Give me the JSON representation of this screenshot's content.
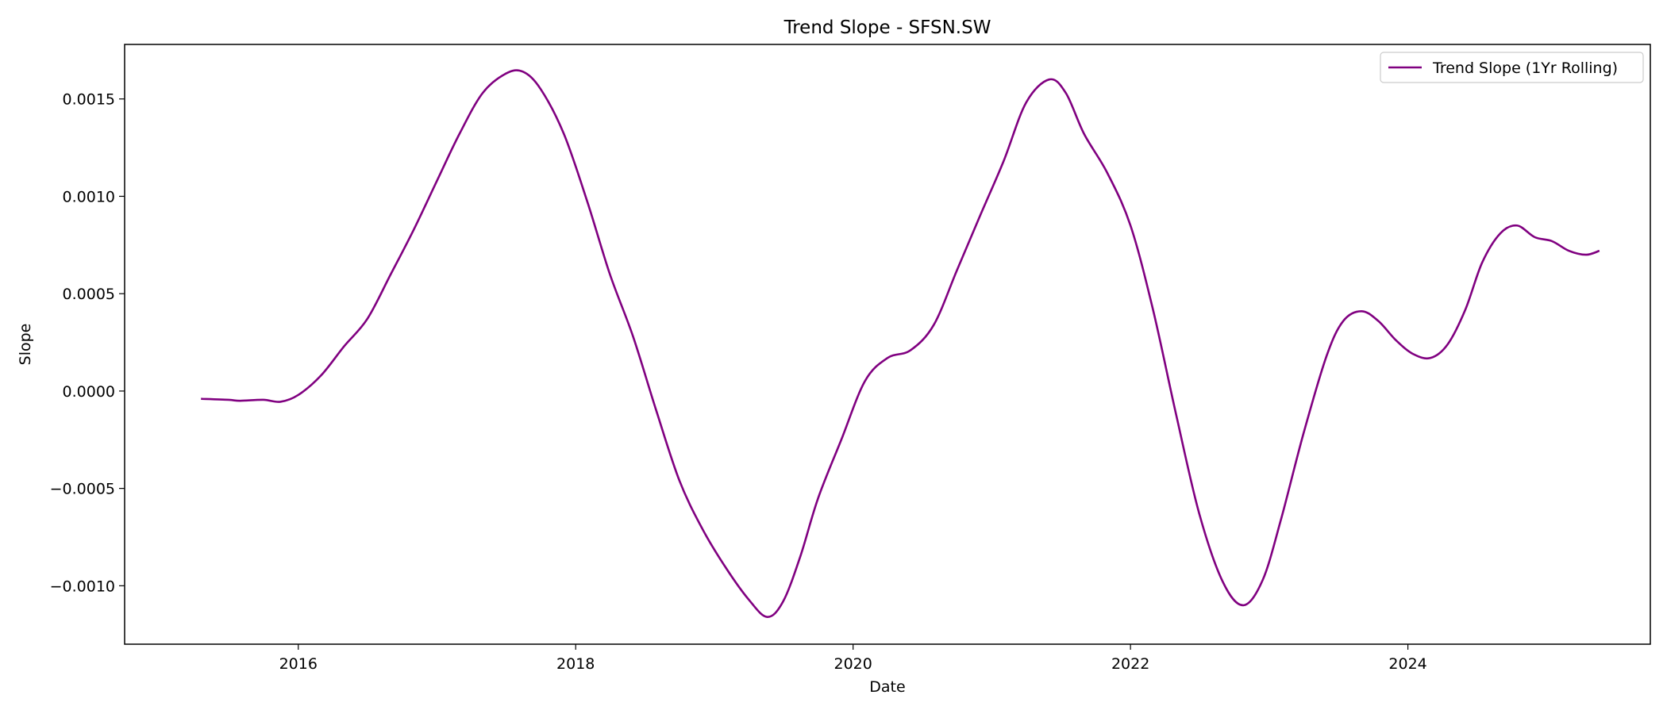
{
  "chart_data": {
    "type": "line",
    "title": "Trend Slope - SFSN.SW",
    "xlabel": "Date",
    "ylabel": "Slope",
    "x_ticks": [
      "2016",
      "2018",
      "2020",
      "2022",
      "2024"
    ],
    "y_ticks": [
      "−0.0010",
      "−0.0005",
      "0.0000",
      "0.0005",
      "0.0010",
      "0.0015"
    ],
    "xlim": [
      "2014-10-01",
      "2025-10-01"
    ],
    "ylim": [
      -0.0013,
      0.00178
    ],
    "legend": {
      "position": "top-right"
    },
    "series": [
      {
        "name": "Trend Slope (1Yr Rolling)",
        "color": "#800080",
        "points": [
          [
            "2015-04-20",
            -4e-05
          ],
          [
            "2015-07-01",
            -4.5e-05
          ],
          [
            "2015-08-01",
            -5e-05
          ],
          [
            "2015-10-01",
            -4.5e-05
          ],
          [
            "2015-11-15",
            -5.5e-05
          ],
          [
            "2016-01-01",
            -2e-05
          ],
          [
            "2016-03-01",
            8e-05
          ],
          [
            "2016-05-01",
            0.00023
          ],
          [
            "2016-07-01",
            0.00037
          ],
          [
            "2016-09-01",
            0.0006
          ],
          [
            "2016-11-01",
            0.00083
          ],
          [
            "2017-01-01",
            0.00108
          ],
          [
            "2017-03-01",
            0.00132
          ],
          [
            "2017-05-01",
            0.00153
          ],
          [
            "2017-07-01",
            0.00163
          ],
          [
            "2017-08-15",
            0.00164
          ],
          [
            "2017-10-01",
            0.00155
          ],
          [
            "2017-12-01",
            0.00132
          ],
          [
            "2018-02-01",
            0.00097
          ],
          [
            "2018-04-01",
            0.0006
          ],
          [
            "2018-06-01",
            0.00028
          ],
          [
            "2018-08-01",
            -0.0001
          ],
          [
            "2018-10-01",
            -0.00046
          ],
          [
            "2018-12-01",
            -0.00071
          ],
          [
            "2019-02-01",
            -0.00091
          ],
          [
            "2019-04-01",
            -0.00107
          ],
          [
            "2019-05-20",
            -0.00116
          ],
          [
            "2019-07-01",
            -0.00108
          ],
          [
            "2019-08-15",
            -0.00085
          ],
          [
            "2019-10-01",
            -0.00055
          ],
          [
            "2019-12-01",
            -0.00025
          ],
          [
            "2020-02-01",
            5e-05
          ],
          [
            "2020-04-01",
            0.00017
          ],
          [
            "2020-06-01",
            0.00021
          ],
          [
            "2020-08-01",
            0.00034
          ],
          [
            "2020-10-01",
            0.00062
          ],
          [
            "2020-12-01",
            0.0009
          ],
          [
            "2021-02-01",
            0.00118
          ],
          [
            "2021-04-01",
            0.00148
          ],
          [
            "2021-06-01",
            0.0016
          ],
          [
            "2021-07-15",
            0.00153
          ],
          [
            "2021-09-01",
            0.00132
          ],
          [
            "2021-11-01",
            0.00112
          ],
          [
            "2022-01-01",
            0.00085
          ],
          [
            "2022-03-01",
            0.00042
          ],
          [
            "2022-05-01",
            -0.00012
          ],
          [
            "2022-07-01",
            -0.00063
          ],
          [
            "2022-09-01",
            -0.00098
          ],
          [
            "2022-10-25",
            -0.0011
          ],
          [
            "2022-12-15",
            -0.00097
          ],
          [
            "2023-02-01",
            -0.00066
          ],
          [
            "2023-04-01",
            -0.00022
          ],
          [
            "2023-06-01",
            0.00018
          ],
          [
            "2023-07-15",
            0.00036
          ],
          [
            "2023-09-01",
            0.00041
          ],
          [
            "2023-10-15",
            0.00036
          ],
          [
            "2023-12-01",
            0.00026
          ],
          [
            "2024-01-15",
            0.00019
          ],
          [
            "2024-03-01",
            0.00017
          ],
          [
            "2024-04-15",
            0.00024
          ],
          [
            "2024-06-01",
            0.00042
          ],
          [
            "2024-07-15",
            0.00066
          ],
          [
            "2024-09-01",
            0.00081
          ],
          [
            "2024-10-15",
            0.00085
          ],
          [
            "2024-12-01",
            0.00079
          ],
          [
            "2025-01-15",
            0.00077
          ],
          [
            "2025-03-01",
            0.00072
          ],
          [
            "2025-04-15",
            0.0007
          ],
          [
            "2025-05-20",
            0.00072
          ]
        ]
      }
    ]
  }
}
